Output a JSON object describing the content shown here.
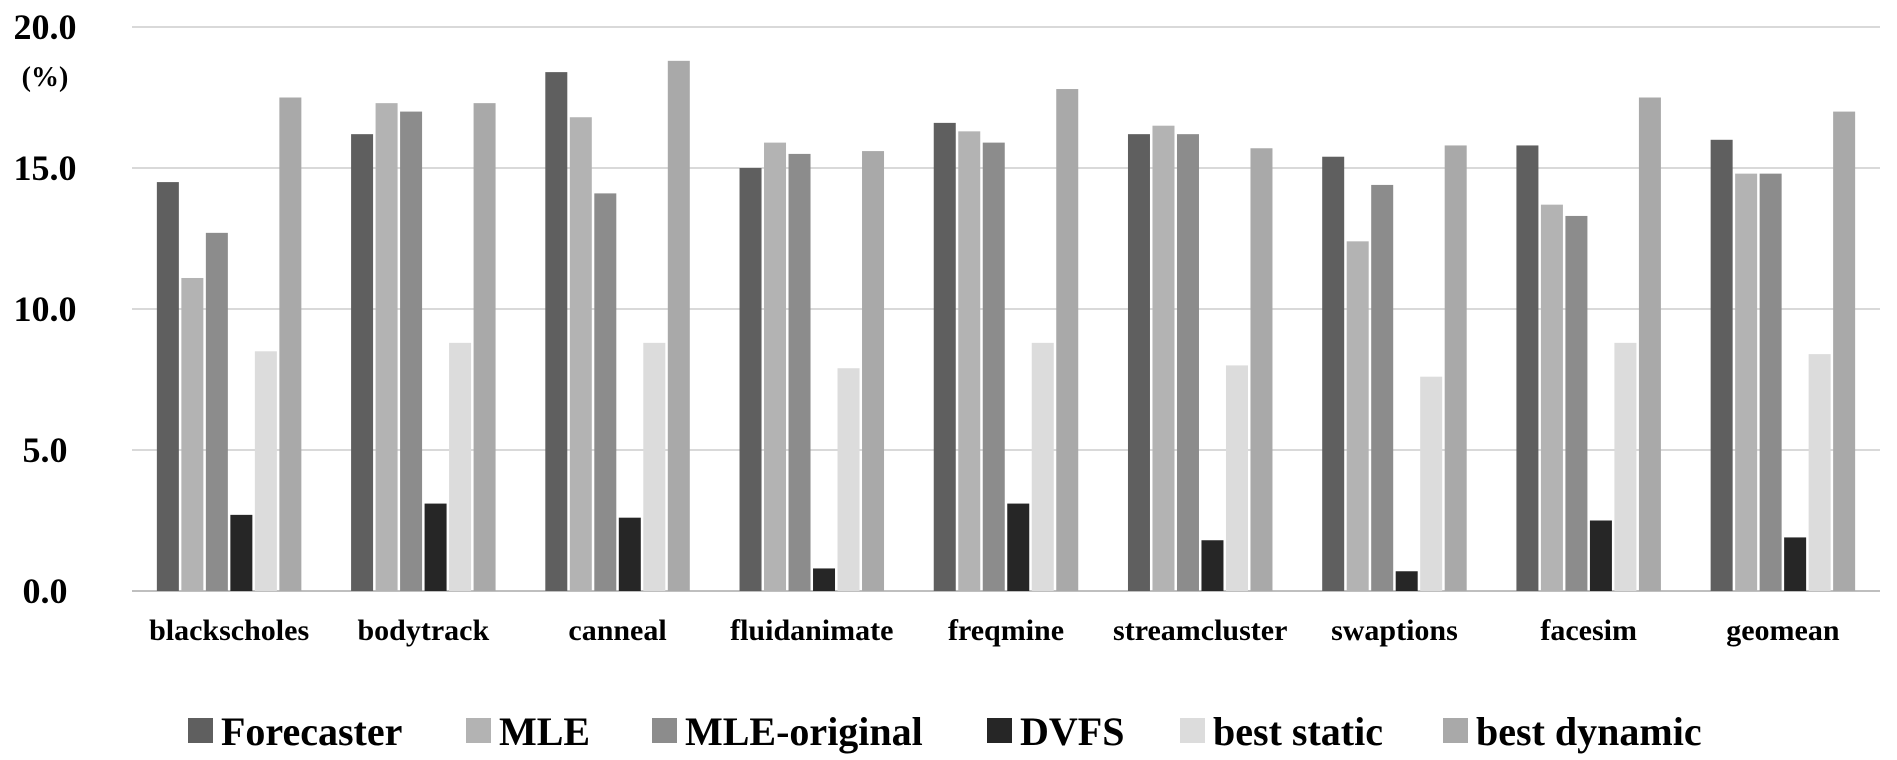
{
  "chart_data": {
    "type": "bar",
    "title": "",
    "xlabel": "",
    "ylabel": "(%)",
    "ylim": [
      0,
      20
    ],
    "yticks": [
      "0.0",
      "5.0",
      "10.0",
      "15.0",
      "20.0"
    ],
    "grid": true,
    "legend_position": "bottom",
    "categories": [
      "blackscholes",
      "bodytrack",
      "canneal",
      "fluidanimate",
      "freqmine",
      "streamcluster",
      "swaptions",
      "facesim",
      "geomean"
    ],
    "series": [
      {
        "name": "Forecaster",
        "color": "#5f5f5f",
        "values": [
          14.5,
          16.2,
          18.4,
          15.0,
          16.6,
          16.2,
          15.4,
          15.8,
          16.0
        ]
      },
      {
        "name": "MLE",
        "color": "#b3b3b3",
        "values": [
          11.1,
          17.3,
          16.8,
          15.9,
          16.3,
          16.5,
          12.4,
          13.7,
          14.8
        ]
      },
      {
        "name": "MLE-original",
        "color": "#8c8c8c",
        "values": [
          12.7,
          17.0,
          14.1,
          15.5,
          15.9,
          16.2,
          14.4,
          13.3,
          14.8
        ]
      },
      {
        "name": "DVFS",
        "color": "#262626",
        "values": [
          2.7,
          3.1,
          2.6,
          0.8,
          3.1,
          1.8,
          0.7,
          2.5,
          1.9
        ]
      },
      {
        "name": "best static",
        "color": "#dcdcdc",
        "values": [
          8.5,
          8.8,
          8.8,
          7.9,
          8.8,
          8.0,
          7.6,
          8.8,
          8.4
        ]
      },
      {
        "name": "best dynamic",
        "color": "#a9a9a9",
        "values": [
          17.5,
          17.3,
          18.8,
          15.6,
          17.8,
          15.7,
          15.8,
          17.5,
          17.0
        ]
      }
    ]
  }
}
